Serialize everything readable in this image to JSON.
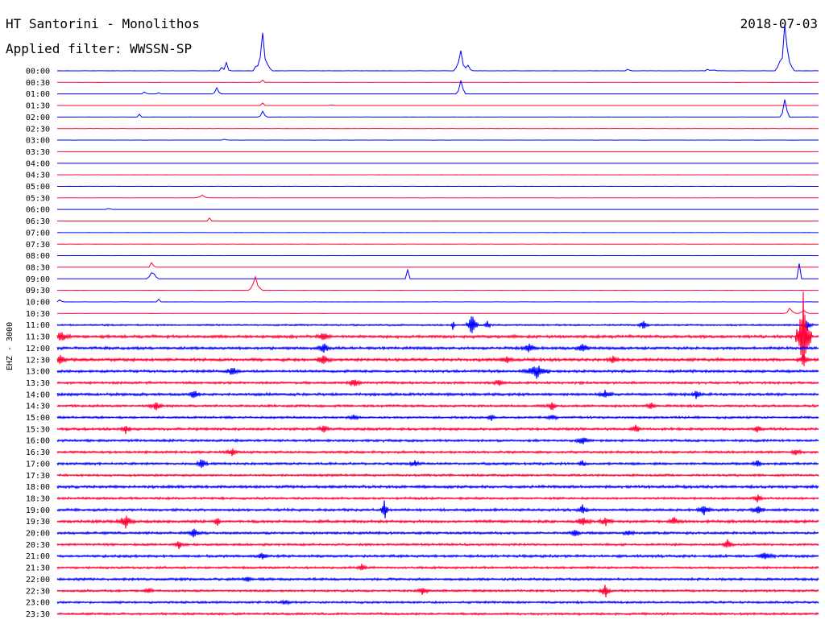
{
  "header": {
    "station": "HT Santorini - Monolithos",
    "date": "2018-07-03",
    "filter": "Applied filter: WWSSN-SP"
  },
  "channel_label": "EHZ - 3000",
  "colors": {
    "odd": "#0000ff",
    "even": "#ff0033",
    "background": "#ffffff",
    "text": "#000000"
  },
  "chart_data": {
    "type": "line",
    "title": "HT Santorini - Monolithos",
    "subtitle": "Applied filter: WWSSN-SP",
    "ylabel": "EHZ - 3000",
    "grid": false,
    "row_labels": [
      "00:00",
      "00:30",
      "01:00",
      "01:30",
      "02:00",
      "02:30",
      "03:00",
      "03:30",
      "04:00",
      "04:30",
      "05:00",
      "05:30",
      "06:00",
      "06:30",
      "07:00",
      "07:30",
      "08:00",
      "08:30",
      "09:00",
      "09:30",
      "10:00",
      "10:30",
      "11:00",
      "11:30",
      "12:00",
      "12:30",
      "13:00",
      "13:30",
      "14:00",
      "14:30",
      "15:00",
      "15:30",
      "16:00",
      "16:30",
      "17:00",
      "17:30",
      "18:00",
      "18:30",
      "19:00",
      "19:30",
      "20:00",
      "20:30",
      "21:00",
      "21:30",
      "22:00",
      "22:30",
      "23:00",
      "23:30"
    ],
    "noise_levels": [
      0.1,
      0.1,
      0.1,
      0.1,
      0.1,
      0.1,
      0.1,
      0.1,
      0.1,
      0.1,
      0.1,
      0.1,
      0.1,
      0.1,
      0.1,
      0.1,
      0.1,
      0.1,
      0.1,
      0.1,
      0.1,
      0.1,
      0.9,
      1.6,
      1.5,
      1.6,
      1.4,
      1.3,
      1.5,
      1.3,
      1.2,
      1.4,
      1.3,
      1.3,
      1.3,
      1.2,
      1.5,
      1.2,
      1.4,
      1.5,
      1.3,
      1.2,
      1.4,
      1.2,
      1.3,
      1.2,
      1.2,
      1.2
    ],
    "events": [
      [
        0,
        0.215,
        20,
        0.8
      ],
      [
        0,
        0.222,
        12,
        1.5
      ],
      [
        0,
        0.27,
        52,
        4
      ],
      [
        0,
        0.53,
        38,
        3
      ],
      [
        0,
        0.54,
        10,
        1.5
      ],
      [
        0,
        0.75,
        7,
        1
      ],
      [
        0,
        0.855,
        8,
        1
      ],
      [
        0,
        0.862,
        6,
        1
      ],
      [
        0,
        0.956,
        72,
        4
      ],
      [
        1,
        0.27,
        5,
        1
      ],
      [
        2,
        0.115,
        7,
        1
      ],
      [
        2,
        0.133,
        4,
        1
      ],
      [
        2,
        0.21,
        12,
        2
      ],
      [
        2,
        0.53,
        28,
        2
      ],
      [
        3,
        0.27,
        6,
        1
      ],
      [
        3,
        0.36,
        3,
        1
      ],
      [
        4,
        0.108,
        4,
        1
      ],
      [
        4,
        0.27,
        8,
        2
      ],
      [
        4,
        0.956,
        30,
        2
      ],
      [
        6,
        0.22,
        3,
        1
      ],
      [
        11,
        0.19,
        6,
        3
      ],
      [
        12,
        0.068,
        4,
        1
      ],
      [
        13,
        0.2,
        4,
        1
      ],
      [
        17,
        0.125,
        18,
        1
      ],
      [
        18,
        0.125,
        25,
        2
      ],
      [
        18,
        0.46,
        28,
        1
      ],
      [
        18,
        0.975,
        40,
        1
      ],
      [
        19,
        0.26,
        20,
        3
      ],
      [
        20,
        0.004,
        6,
        1
      ],
      [
        20,
        0.133,
        6,
        1
      ],
      [
        21,
        0.963,
        12,
        2
      ],
      [
        21,
        0.98,
        9,
        2
      ],
      [
        22,
        0.545,
        18,
        3
      ],
      [
        22,
        0.52,
        8,
        1
      ],
      [
        22,
        0.565,
        6,
        2
      ],
      [
        22,
        0.77,
        6,
        3
      ],
      [
        22,
        0.985,
        7,
        3
      ],
      [
        23,
        0.005,
        6,
        5
      ],
      [
        23,
        0.35,
        6,
        4
      ],
      [
        23,
        0.98,
        60,
        4
      ],
      [
        24,
        0.35,
        7,
        4
      ],
      [
        24,
        0.62,
        6,
        4
      ],
      [
        24,
        0.69,
        6,
        4
      ],
      [
        25,
        0.005,
        6,
        4
      ],
      [
        25,
        0.35,
        6,
        4
      ],
      [
        25,
        0.59,
        5,
        4
      ],
      [
        25,
        0.73,
        5,
        3
      ],
      [
        25,
        0.98,
        5,
        4
      ],
      [
        26,
        0.23,
        6,
        4
      ],
      [
        26,
        0.63,
        9,
        7
      ],
      [
        27,
        0.39,
        6,
        4
      ],
      [
        27,
        0.58,
        4,
        3
      ],
      [
        28,
        0.18,
        6,
        3
      ],
      [
        28,
        0.72,
        5,
        4
      ],
      [
        28,
        0.84,
        6,
        3
      ],
      [
        29,
        0.13,
        5,
        4
      ],
      [
        29,
        0.65,
        6,
        3
      ],
      [
        29,
        0.78,
        5,
        3
      ],
      [
        30,
        0.39,
        3,
        3
      ],
      [
        30,
        0.57,
        5,
        2
      ],
      [
        30,
        0.65,
        4,
        3
      ],
      [
        31,
        0.09,
        6,
        3
      ],
      [
        31,
        0.35,
        5,
        3
      ],
      [
        31,
        0.76,
        5,
        3
      ],
      [
        31,
        0.92,
        5,
        3
      ],
      [
        32,
        0.69,
        6,
        4
      ],
      [
        33,
        0.23,
        5,
        3
      ],
      [
        33,
        0.97,
        5,
        3
      ],
      [
        34,
        0.19,
        7,
        3
      ],
      [
        34,
        0.47,
        4,
        3
      ],
      [
        34,
        0.69,
        4,
        3
      ],
      [
        34,
        0.92,
        4,
        3
      ],
      [
        37,
        0.92,
        5,
        3
      ],
      [
        38,
        0.43,
        14,
        2
      ],
      [
        38,
        0.69,
        6,
        3
      ],
      [
        38,
        0.85,
        6,
        4
      ],
      [
        38,
        0.92,
        6,
        4
      ],
      [
        39,
        0.09,
        8,
        5
      ],
      [
        39,
        0.21,
        7,
        2
      ],
      [
        39,
        0.69,
        6,
        4
      ],
      [
        39,
        0.72,
        5,
        4
      ],
      [
        39,
        0.81,
        6,
        3
      ],
      [
        40,
        0.18,
        6,
        4
      ],
      [
        40,
        0.68,
        5,
        3
      ],
      [
        40,
        0.75,
        4,
        3
      ],
      [
        41,
        0.16,
        5,
        3
      ],
      [
        41,
        0.88,
        7,
        3
      ],
      [
        42,
        0.27,
        5,
        3
      ],
      [
        42,
        0.93,
        5,
        5
      ],
      [
        43,
        0.4,
        4,
        3
      ],
      [
        44,
        0.25,
        3,
        3
      ],
      [
        45,
        0.12,
        4,
        3
      ],
      [
        45,
        0.48,
        6,
        3
      ],
      [
        45,
        0.72,
        10,
        3
      ],
      [
        46,
        0.3,
        3,
        3
      ]
    ]
  }
}
